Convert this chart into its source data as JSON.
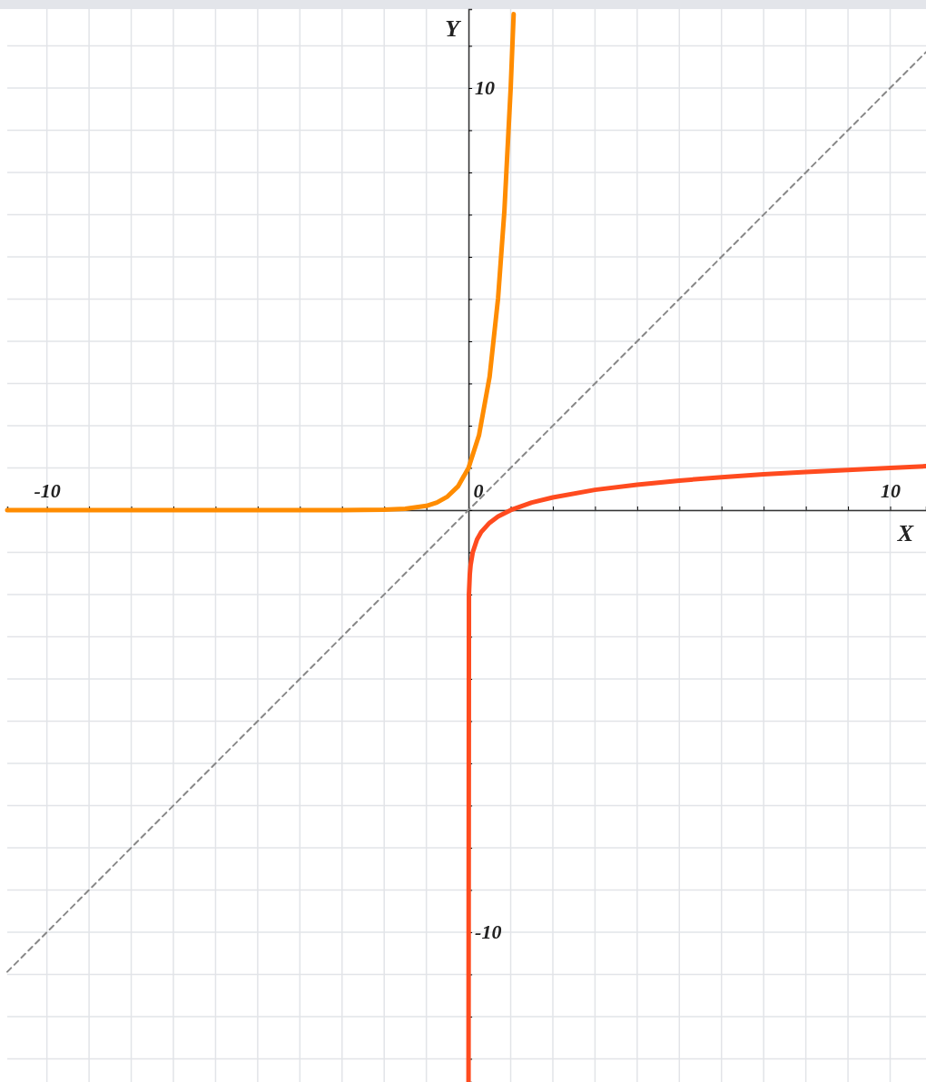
{
  "chart_data": {
    "type": "line",
    "xlabel": "X",
    "ylabel": "Y",
    "xlim": [
      -10.94,
      10.85
    ],
    "ylim": [
      -13.55,
      11.87
    ],
    "xticks": [
      {
        "value": -10,
        "label": "-10"
      },
      {
        "value": -9,
        "label": null
      },
      {
        "value": -8,
        "label": null
      },
      {
        "value": -7,
        "label": null
      },
      {
        "value": -6,
        "label": null
      },
      {
        "value": -5,
        "label": null
      },
      {
        "value": -4,
        "label": null
      },
      {
        "value": -3,
        "label": null
      },
      {
        "value": -2,
        "label": null
      },
      {
        "value": -1,
        "label": null
      },
      {
        "value": 0,
        "label": "0"
      },
      {
        "value": 1,
        "label": null
      },
      {
        "value": 2,
        "label": null
      },
      {
        "value": 3,
        "label": null
      },
      {
        "value": 4,
        "label": null
      },
      {
        "value": 5,
        "label": null
      },
      {
        "value": 6,
        "label": null
      },
      {
        "value": 7,
        "label": null
      },
      {
        "value": 8,
        "label": null
      },
      {
        "value": 9,
        "label": null
      },
      {
        "value": 10,
        "label": "10"
      }
    ],
    "yticks": [
      {
        "value": -13,
        "label": null
      },
      {
        "value": -12,
        "label": null
      },
      {
        "value": -11,
        "label": null
      },
      {
        "value": -10,
        "label": "-10"
      },
      {
        "value": -9,
        "label": null
      },
      {
        "value": -8,
        "label": null
      },
      {
        "value": -7,
        "label": null
      },
      {
        "value": -6,
        "label": null
      },
      {
        "value": -5,
        "label": null
      },
      {
        "value": -4,
        "label": null
      },
      {
        "value": -3,
        "label": null
      },
      {
        "value": -2,
        "label": null
      },
      {
        "value": -1,
        "label": null
      },
      {
        "value": 0,
        "label": null
      },
      {
        "value": 1,
        "label": null
      },
      {
        "value": 2,
        "label": null
      },
      {
        "value": 3,
        "label": null
      },
      {
        "value": 4,
        "label": null
      },
      {
        "value": 5,
        "label": null
      },
      {
        "value": 6,
        "label": null
      },
      {
        "value": 7,
        "label": null
      },
      {
        "value": 8,
        "label": null
      },
      {
        "value": 9,
        "label": null
      },
      {
        "value": 10,
        "label": "10"
      },
      {
        "value": 11,
        "label": null
      }
    ],
    "grid": true,
    "series": [
      {
        "color": "#888888",
        "line_style": "dashed",
        "x": [
          -10.94,
          10.85
        ],
        "values": [
          -10.94,
          10.85
        ]
      },
      {
        "color": "#ff8c00",
        "line_style": "solid",
        "x": [
          -10.94,
          -4,
          -3,
          -2,
          -1.5,
          -1,
          -0.75,
          -0.5,
          -0.25,
          0,
          0.25,
          0.5,
          0.7,
          0.85,
          1,
          1.07
        ],
        "values": [
          0,
          0,
          0,
          0.01,
          0.03,
          0.1,
          0.18,
          0.32,
          0.56,
          1,
          1.78,
          3.16,
          5.01,
          7.08,
          10,
          11.75
        ]
      },
      {
        "color": "#ff4b1f",
        "line_style": "solid",
        "x": [
          0,
          0.01,
          0.03,
          0.05,
          0.1,
          0.2,
          0.3,
          0.5,
          0.7,
          1,
          1.5,
          2,
          3,
          4,
          5,
          6,
          7,
          8,
          9,
          10,
          10.85
        ],
        "values": [
          -13.55,
          -2,
          -1.52,
          -1.3,
          -1,
          -0.7,
          -0.52,
          -0.3,
          -0.15,
          0,
          0.18,
          0.3,
          0.48,
          0.6,
          0.7,
          0.78,
          0.85,
          0.9,
          0.95,
          1,
          1.04
        ]
      }
    ]
  }
}
